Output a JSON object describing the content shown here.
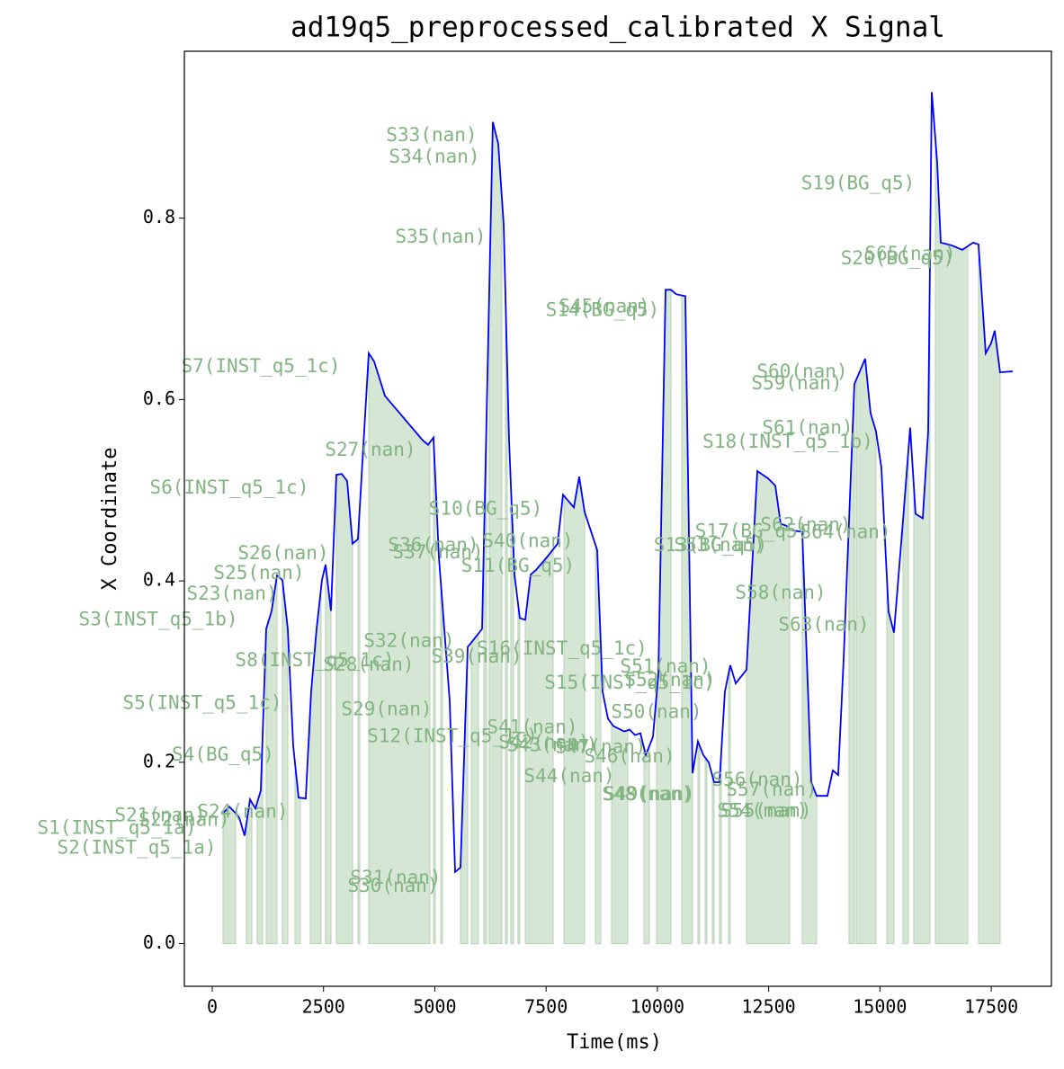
{
  "chart_data": {
    "type": "line",
    "title": "ad19q5_preprocessed_calibrated X Signal",
    "x_label": "Time(ms)",
    "y_label": "X Coordinate",
    "color": "#0000ff",
    "span_color": "#d6e6d4",
    "annotation_color": "#82b482",
    "xlim": [
      -626,
      18852
    ],
    "ylim": [
      -0.047,
      0.984
    ],
    "xticks": [
      0,
      2500,
      5000,
      7500,
      10000,
      12500,
      15000,
      17500
    ],
    "yticks": [
      {
        "value": 0,
        "label": "0.0"
      },
      0.2,
      0.4,
      0.6,
      0.8
    ],
    "x": [
      242,
      384,
      525,
      606,
      727,
      849,
      970,
      1091,
      1212,
      1334,
      1455,
      1576,
      1697,
      1819,
      1940,
      2101,
      2222,
      2344,
      2465,
      2546,
      2667,
      2788,
      2910,
      3031,
      3152,
      3273,
      3516,
      3637,
      3880,
      4728,
      4849,
      4970,
      5092,
      5213,
      5334,
      5456,
      5577,
      5739,
      5900,
      6062,
      6304,
      6425,
      6547,
      6668,
      6789,
      6910,
      7032,
      7153,
      7274,
      7517,
      7759,
      7880,
      8123,
      8244,
      8365,
      8486,
      8648,
      8769,
      8890,
      9012,
      9254,
      9376,
      9497,
      9618,
      9739,
      9901,
      10022,
      10184,
      10305,
      10426,
      10628,
      10790,
      10911,
      11032,
      11153,
      11275,
      11396,
      11517,
      11638,
      11760,
      12002,
      12245,
      12487,
      12649,
      12770,
      12891,
      13013,
      13255,
      13457,
      13578,
      13820,
      13941,
      14062,
      14183,
      14426,
      14668,
      14789,
      14911,
      15032,
      15194,
      15315,
      15517,
      15679,
      15800,
      15962,
      16084,
      16164,
      16285,
      16366,
      16608,
      16851,
      17093,
      17214,
      17376,
      17497,
      17578,
      17699,
      17982
    ],
    "values": [
      0.144,
      0.151,
      0.144,
      0.139,
      0.119,
      0.159,
      0.149,
      0.169,
      0.347,
      0.367,
      0.406,
      0.401,
      0.347,
      0.218,
      0.161,
      0.16,
      0.278,
      0.347,
      0.401,
      0.418,
      0.367,
      0.517,
      0.518,
      0.51,
      0.441,
      0.446,
      0.651,
      0.642,
      0.604,
      0.555,
      0.55,
      0.558,
      0.426,
      0.347,
      0.268,
      0.079,
      0.084,
      0.327,
      0.337,
      0.347,
      0.906,
      0.882,
      0.793,
      0.555,
      0.407,
      0.359,
      0.357,
      0.407,
      0.412,
      0.426,
      0.441,
      0.495,
      0.481,
      0.515,
      0.476,
      0.458,
      0.434,
      0.278,
      0.248,
      0.24,
      0.234,
      0.236,
      0.23,
      0.232,
      0.208,
      0.228,
      0.297,
      0.721,
      0.721,
      0.716,
      0.714,
      0.188,
      0.223,
      0.208,
      0.2,
      0.178,
      0.178,
      0.278,
      0.307,
      0.287,
      0.302,
      0.521,
      0.513,
      0.505,
      0.463,
      0.461,
      0.456,
      0.454,
      0.178,
      0.163,
      0.163,
      0.191,
      0.186,
      0.312,
      0.617,
      0.645,
      0.585,
      0.565,
      0.525,
      0.366,
      0.343,
      0.466,
      0.569,
      0.474,
      0.469,
      0.565,
      0.939,
      0.862,
      0.773,
      0.77,
      0.765,
      0.773,
      0.771,
      0.651,
      0.662,
      0.676,
      0.63,
      0.631
    ],
    "spans": [
      {
        "start": 242,
        "end": 525
      },
      {
        "start": 768,
        "end": 889
      },
      {
        "start": 1010,
        "end": 1132
      },
      {
        "start": 1212,
        "end": 1455
      },
      {
        "start": 1576,
        "end": 1697
      },
      {
        "start": 1859,
        "end": 1980
      },
      {
        "start": 2202,
        "end": 2445
      },
      {
        "start": 2546,
        "end": 2667
      },
      {
        "start": 2788,
        "end": 3152
      },
      {
        "start": 3273,
        "end": 3314
      },
      {
        "start": 3516,
        "end": 4890
      },
      {
        "start": 4971,
        "end": 5011
      },
      {
        "start": 5132,
        "end": 5173
      },
      {
        "start": 5577,
        "end": 5739
      },
      {
        "start": 5819,
        "end": 5981
      },
      {
        "start": 6102,
        "end": 6163
      },
      {
        "start": 6223,
        "end": 6506
      },
      {
        "start": 6587,
        "end": 6628
      },
      {
        "start": 6708,
        "end": 6769
      },
      {
        "start": 6870,
        "end": 6910
      },
      {
        "start": 7032,
        "end": 7658
      },
      {
        "start": 7901,
        "end": 8365
      },
      {
        "start": 8608,
        "end": 8729
      },
      {
        "start": 8971,
        "end": 9335
      },
      {
        "start": 9699,
        "end": 9820
      },
      {
        "start": 9982,
        "end": 10305
      },
      {
        "start": 10547,
        "end": 10790
      },
      {
        "start": 10911,
        "end": 10951
      },
      {
        "start": 11073,
        "end": 11113
      },
      {
        "start": 11234,
        "end": 11275
      },
      {
        "start": 11396,
        "end": 11436
      },
      {
        "start": 11598,
        "end": 11638
      },
      {
        "start": 12002,
        "end": 12972
      },
      {
        "start": 13255,
        "end": 13578
      },
      {
        "start": 14305,
        "end": 14426
      },
      {
        "start": 14467,
        "end": 14911
      },
      {
        "start": 15154,
        "end": 15315
      },
      {
        "start": 15517,
        "end": 15639
      },
      {
        "start": 15760,
        "end": 16124
      },
      {
        "start": 16245,
        "end": 16972
      },
      {
        "start": 17214,
        "end": 17699
      }
    ],
    "annotations": [
      {
        "text": "S1(INST_q5_1a)",
        "x": -2142,
        "y": 0.127
      },
      {
        "text": "S2(INST_q5_1a)",
        "x": -1697,
        "y": 0.105
      },
      {
        "text": "S21(nan)",
        "x": -1172,
        "y": 0.141
      },
      {
        "text": "S22(nan)",
        "x": -626,
        "y": 0.136
      },
      {
        "text": "S24(nan)",
        "x": 687,
        "y": 0.145
      },
      {
        "text": "S3(INST_q5_1b)",
        "x": -1212,
        "y": 0.357
      },
      {
        "text": "S4(BG_q5)",
        "x": 242,
        "y": 0.208
      },
      {
        "text": "S5(INST_q5_1c)",
        "x": -222,
        "y": 0.265
      },
      {
        "text": "S6(INST_q5_1c)",
        "x": 384,
        "y": 0.502
      },
      {
        "text": "S7(INST_q5_1c)",
        "x": 1091,
        "y": 0.636
      },
      {
        "text": "S8(INST_q5_1c)",
        "x": 2303,
        "y": 0.312
      },
      {
        "text": "S23(nan)",
        "x": 445,
        "y": 0.385
      },
      {
        "text": "S25(nan)",
        "x": 1051,
        "y": 0.408
      },
      {
        "text": "S26(nan)",
        "x": 1596,
        "y": 0.43
      },
      {
        "text": "S27(nan)",
        "x": 3556,
        "y": 0.544
      },
      {
        "text": "S28(nan)",
        "x": 3516,
        "y": 0.307
      },
      {
        "text": "S29(nan)",
        "x": 3920,
        "y": 0.258
      },
      {
        "text": "S30(nan)",
        "x": 4061,
        "y": 0.063
      },
      {
        "text": "S31(nan)",
        "x": 4122,
        "y": 0.072
      },
      {
        "text": "S32(nan)",
        "x": 4425,
        "y": 0.333
      },
      {
        "text": "S33(nan)",
        "x": 4930,
        "y": 0.891
      },
      {
        "text": "S34(nan)",
        "x": 4991,
        "y": 0.867
      },
      {
        "text": "S35(nan)",
        "x": 5132,
        "y": 0.779
      },
      {
        "text": "S36(nan)",
        "x": 4971,
        "y": 0.439
      },
      {
        "text": "S37(nan)",
        "x": 5072,
        "y": 0.431
      },
      {
        "text": "S39(nan)",
        "x": 5941,
        "y": 0.316
      },
      {
        "text": "S40(nan)",
        "x": 7092,
        "y": 0.443
      },
      {
        "text": "S10(BG_q5)",
        "x": 6143,
        "y": 0.479
      },
      {
        "text": "S11(BG_q5)",
        "x": 6870,
        "y": 0.416
      },
      {
        "text": "S12(INST_q5_1c)",
        "x": 5395,
        "y": 0.228
      },
      {
        "text": "S16(INST_q5_1c)",
        "x": 7860,
        "y": 0.325
      },
      {
        "text": "S41(nan)",
        "x": 7193,
        "y": 0.238
      },
      {
        "text": "S42(nan)",
        "x": 7456,
        "y": 0.221
      },
      {
        "text": "S43(nan)",
        "x": 7638,
        "y": 0.218
      },
      {
        "text": "S44(nan)",
        "x": 8022,
        "y": 0.184
      },
      {
        "text": "S45(nan)",
        "x": 8810,
        "y": 0.702
      },
      {
        "text": "S14(BG_q5)",
        "x": 8769,
        "y": 0.698
      },
      {
        "text": "S15(INST_q5_1c)",
        "x": 9376,
        "y": 0.287
      },
      {
        "text": "S46(nan)",
        "x": 9376,
        "y": 0.206
      },
      {
        "text": "S47(nan)",
        "x": 8729,
        "y": 0.216
      },
      {
        "text": "S48(nan)",
        "x": 9780,
        "y": 0.164
      },
      {
        "text": "S49(nan)",
        "x": 9820,
        "y": 0.164
      },
      {
        "text": "S50(nan)",
        "x": 9982,
        "y": 0.255
      },
      {
        "text": "S51(nan)",
        "x": 10184,
        "y": 0.305
      },
      {
        "text": "S52(nan)",
        "x": 10285,
        "y": 0.29
      },
      {
        "text": "S53(nan)",
        "x": 11396,
        "y": 0.439
      },
      {
        "text": "S13(BG_q5)",
        "x": 11194,
        "y": 0.439
      },
      {
        "text": "S17(BG_q5)",
        "x": 12124,
        "y": 0.454
      },
      {
        "text": "S18(INST_q5_1b)",
        "x": 12932,
        "y": 0.553
      },
      {
        "text": "S19(BG_q5)",
        "x": 14508,
        "y": 0.838
      },
      {
        "text": "S20(BG_q5)",
        "x": 15397,
        "y": 0.755
      },
      {
        "text": "S54(nan)",
        "x": 12366,
        "y": 0.146
      },
      {
        "text": "S55(nan)",
        "x": 12447,
        "y": 0.146
      },
      {
        "text": "S56(nan)",
        "x": 12245,
        "y": 0.18
      },
      {
        "text": "S57(nan)",
        "x": 12568,
        "y": 0.169
      },
      {
        "text": "S58(nan)",
        "x": 12770,
        "y": 0.386
      },
      {
        "text": "S59(nan)",
        "x": 13134,
        "y": 0.617
      },
      {
        "text": "S60(nan)",
        "x": 13255,
        "y": 0.63
      },
      {
        "text": "S61(nan)",
        "x": 13376,
        "y": 0.568
      },
      {
        "text": "S62(nan)",
        "x": 13336,
        "y": 0.461
      },
      {
        "text": "S63(nan)",
        "x": 13740,
        "y": 0.351
      },
      {
        "text": "S64(nan)",
        "x": 14225,
        "y": 0.453
      },
      {
        "text": "S65(nan)",
        "x": 15680,
        "y": 0.76
      }
    ]
  }
}
